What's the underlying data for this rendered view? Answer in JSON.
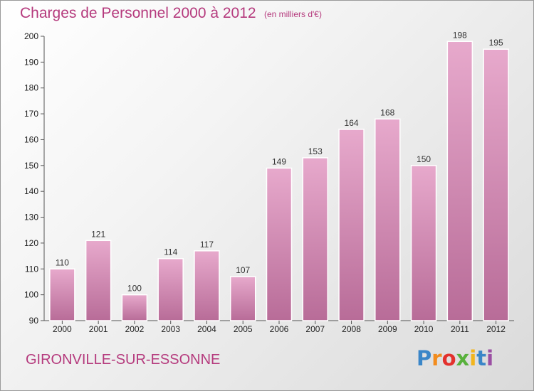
{
  "chart_data": {
    "type": "bar",
    "title": "Charges de Personnel 2000 à 2012",
    "subtitle": "(en milliers d'€)",
    "categories": [
      "2000",
      "2001",
      "2002",
      "2003",
      "2004",
      "2005",
      "2006",
      "2007",
      "2008",
      "2009",
      "2010",
      "2011",
      "2012"
    ],
    "values": [
      110,
      121,
      100,
      114,
      117,
      107,
      149,
      153,
      164,
      168,
      150,
      198,
      195
    ],
    "ylim": [
      90,
      200
    ],
    "yticks": [
      90,
      100,
      110,
      120,
      130,
      140,
      150,
      160,
      170,
      180,
      190,
      200
    ],
    "xlabel": "",
    "ylabel": "",
    "grid": false,
    "legend": "none",
    "bar_color": "#c76ea3"
  },
  "footer": {
    "commune": "GIRONVILLE-SUR-ESSONNE"
  },
  "brand": {
    "letters": [
      "P",
      "r",
      "o",
      "x",
      "i",
      "t",
      "i"
    ],
    "colors": [
      "#3a86c8",
      "#f28c1e",
      "#e3312d",
      "#58b13c",
      "#f2b51e",
      "#3a86c8",
      "#9b4fa3"
    ]
  }
}
